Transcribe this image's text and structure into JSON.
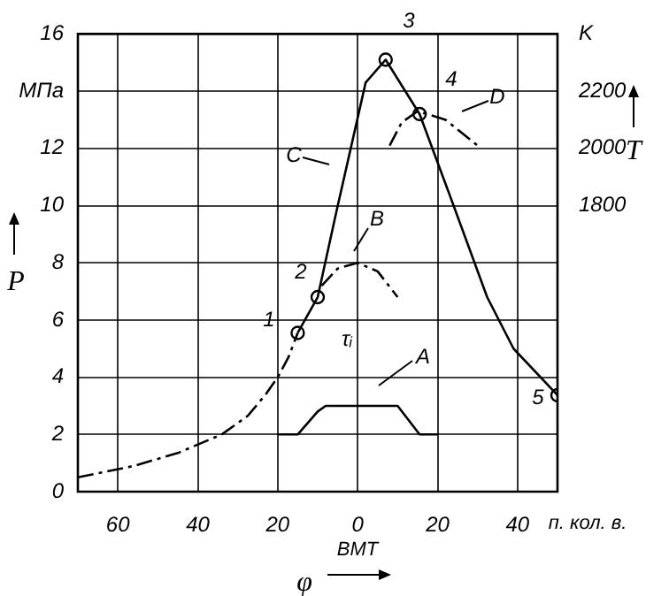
{
  "chart_data": {
    "type": "line",
    "xlabel": "φ",
    "ylabel": "P",
    "y2label": "T",
    "xlim": [
      -70,
      50
    ],
    "xticks": [
      {
        "value": -60,
        "label": "60"
      },
      {
        "value": -40,
        "label": "40"
      },
      {
        "value": -20,
        "label": "20"
      },
      0,
      20,
      40
    ],
    "ylim": [
      0,
      16
    ],
    "yticks": [
      0,
      2,
      4,
      6,
      8,
      10,
      12,
      {
        "value": 14,
        "label": "МПа"
      },
      16
    ],
    "y2lim": [
      800,
      2400
    ],
    "y2ticks": [
      1800,
      2000,
      2200,
      {
        "value": 2400,
        "label": "K"
      }
    ],
    "grid": true,
    "legend": false,
    "series": [
      {
        "color": "#000000",
        "line_style": "dashed",
        "marker": "none",
        "x": [
          -70,
          -56,
          -45,
          -34,
          -27.5,
          -23,
          -20,
          -17.3,
          -15
        ],
        "values": [
          0.5,
          0.9,
          1.35,
          2.0,
          2.65,
          3.4,
          4.0,
          4.7,
          5.55
        ]
      },
      {
        "color": "#000000",
        "line_style": "solid",
        "marker": "none",
        "x": [
          -15,
          -10,
          -5.3,
          2,
          7,
          15.5,
          24,
          32.4,
          39,
          50
        ],
        "values": [
          5.55,
          6.8,
          9.8,
          14.3,
          15.1,
          13.2,
          10,
          6.8,
          5.0,
          3.37
        ]
      },
      {
        "color": "#000000",
        "line_style": "dashed",
        "marker": "none",
        "x": [
          -9,
          -5,
          0,
          5,
          10
        ],
        "values": [
          7.2,
          7.8,
          8.0,
          7.7,
          6.8
        ]
      },
      {
        "color": "#000000",
        "line_style": "dashed",
        "marker": "none",
        "x": [
          8,
          11,
          15,
          22,
          30
        ],
        "values": [
          12.1,
          12.9,
          13.3,
          13.0,
          12.1
        ]
      },
      {
        "color": "#000000",
        "line_style": "solid",
        "marker": "none",
        "x": [
          -20,
          -15,
          -10,
          -8,
          10,
          15.5,
          20
        ],
        "values": [
          2,
          2,
          2.8,
          3.0,
          3.0,
          2.0,
          2.0
        ]
      },
      {
        "type": "scatter",
        "color": "#000000",
        "marker": "circle",
        "x": [
          -15,
          -10,
          7,
          15.5,
          50
        ],
        "values": [
          5.55,
          6.8,
          15.1,
          13.2,
          3.37
        ]
      }
    ],
    "annotations": [
      "1",
      "2",
      "3",
      "4",
      "5",
      "A",
      "B",
      "C",
      "D",
      "τᵢ",
      "ВМТ",
      "п. кол. в."
    ]
  }
}
